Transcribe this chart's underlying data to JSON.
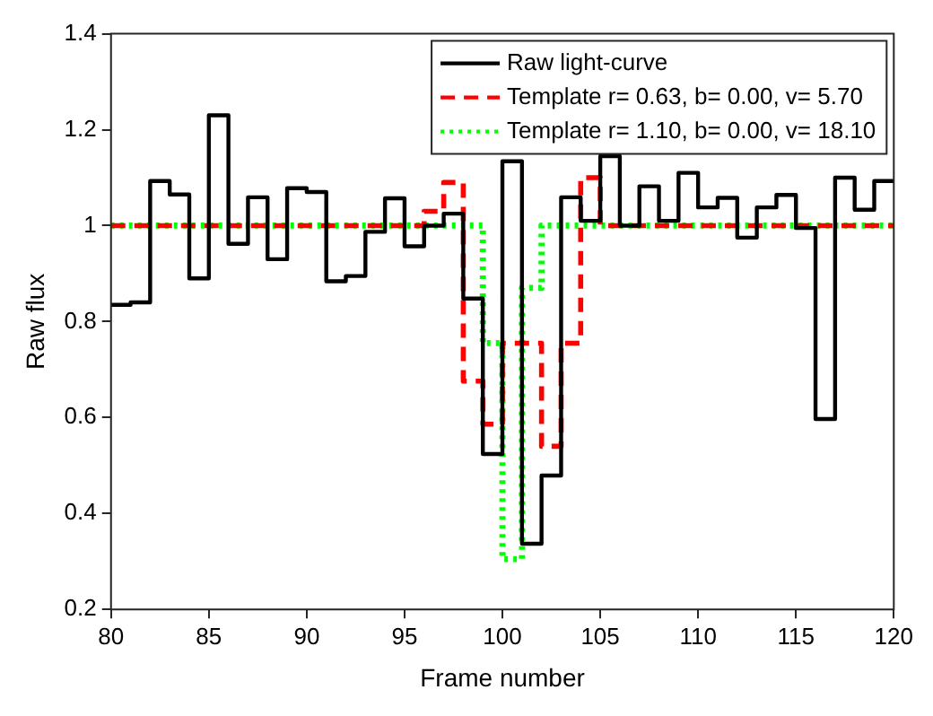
{
  "chart_data": {
    "type": "step",
    "xlabel": "Frame number",
    "ylabel": "Raw flux",
    "xlim": [
      80,
      120
    ],
    "ylim": [
      0.2,
      1.4
    ],
    "xticks": [
      80,
      85,
      90,
      95,
      100,
      105,
      110,
      115,
      120
    ],
    "yticks": [
      0.2,
      0.4,
      0.6,
      0.8,
      1,
      1.2,
      1.4
    ],
    "grid": false,
    "legend": "top right",
    "marker": "none",
    "x": [
      80,
      81,
      82,
      83,
      84,
      85,
      86,
      87,
      88,
      89,
      90,
      91,
      92,
      93,
      94,
      95,
      96,
      97,
      98,
      99,
      100,
      101,
      102,
      103,
      104,
      105,
      106,
      107,
      108,
      109,
      110,
      111,
      112,
      113,
      114,
      115,
      116,
      117,
      118,
      119,
      120
    ],
    "series": [
      {
        "name": "Raw light-curve",
        "color": "#000000",
        "line_style": "solid",
        "values": [
          0.835,
          0.84,
          1.093,
          1.065,
          0.89,
          1.23,
          0.962,
          1.059,
          0.93,
          1.078,
          1.07,
          0.884,
          0.895,
          0.987,
          1.057,
          0.957,
          1.0,
          1.025,
          0.848,
          0.524,
          1.134,
          0.337,
          0.479,
          1.059,
          1.01,
          1.145,
          1.0,
          1.082,
          1.01,
          1.11,
          1.038,
          1.058,
          0.975,
          1.038,
          1.064,
          0.995,
          0.597,
          1.1,
          1.033,
          1.093,
          1.093
        ]
      },
      {
        "name": "Template r= 0.63, b= 0.00, v= 5.70",
        "color": "#ff0000",
        "line_style": "dashed",
        "values": [
          1,
          1,
          1,
          1,
          1,
          1,
          1,
          1,
          1,
          1,
          1,
          1,
          1,
          1,
          1,
          1,
          1.03,
          1.09,
          0.676,
          0.586,
          0.755,
          0.755,
          0.54,
          0.755,
          1.1,
          1,
          1,
          1,
          1,
          1,
          1,
          1,
          1,
          1,
          1,
          1,
          1,
          1,
          1,
          1,
          1
        ]
      },
      {
        "name": "Template r= 1.10, b= 0.00, v= 18.10",
        "color": "#00ff00",
        "line_style": "dotted",
        "values": [
          1,
          1,
          1,
          1,
          1,
          1,
          1,
          1,
          1,
          1,
          1,
          1,
          1,
          1,
          1,
          1,
          1,
          1,
          1,
          0.755,
          0.305,
          0.87,
          1,
          1,
          1,
          1,
          1,
          1,
          1,
          1,
          1,
          1,
          1,
          1,
          1,
          1,
          1,
          1,
          1,
          1,
          1
        ]
      }
    ]
  }
}
